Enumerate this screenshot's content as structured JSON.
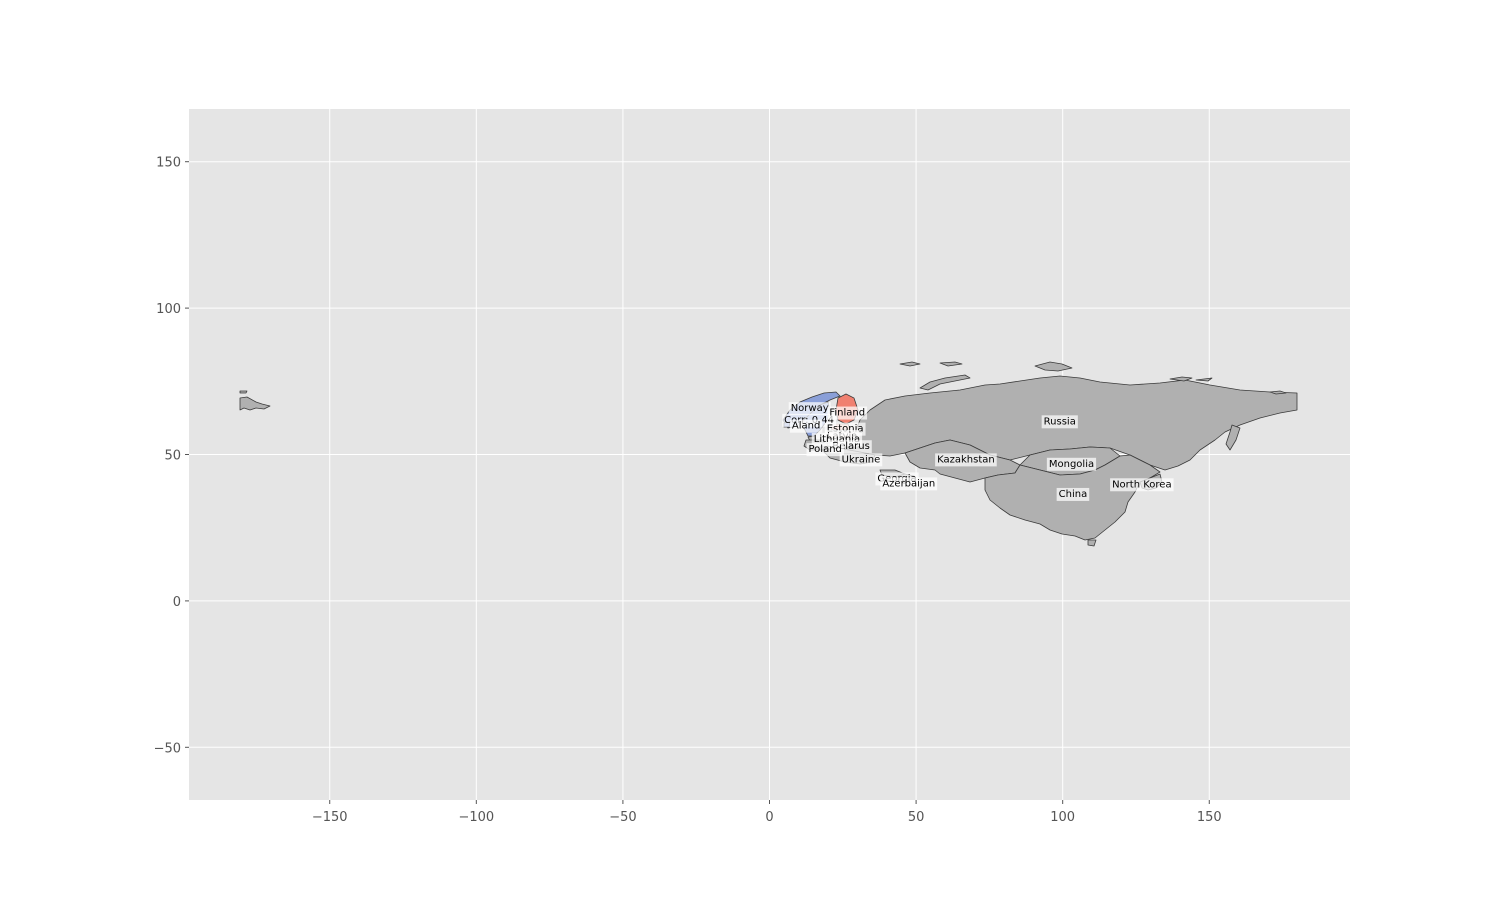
{
  "chart_data": {
    "type": "map",
    "xlim": [
      -198,
      198
    ],
    "ylim": [
      -68,
      168
    ],
    "x_ticks": [
      -150,
      -100,
      -50,
      0,
      50,
      100,
      150
    ],
    "y_ticks": [
      -50,
      0,
      50,
      100,
      150
    ],
    "x_tick_labels": [
      "−150",
      "−100",
      "−50",
      "0",
      "50",
      "100",
      "150"
    ],
    "y_tick_labels": [
      "−50",
      "0",
      "50",
      "100",
      "150"
    ],
    "grid": true,
    "colors": {
      "axes_background": "#e5e5e5",
      "land": "#b0b0b0",
      "high_value": "#f08070",
      "low_value": "#8a9fd8",
      "border": "#3a3a3a"
    },
    "country_labels": [
      {
        "name": "Norway",
        "lon": 13.7,
        "lat": 66.0
      },
      {
        "name": "Corr: 0.44",
        "lon": 13.5,
        "lat": 62.0
      },
      {
        "name": "Finland",
        "lon": 26.5,
        "lat": 64.5
      },
      {
        "name": "Aland",
        "lon": 12.5,
        "lat": 60.0
      },
      {
        "name": "Estonia",
        "lon": 25.8,
        "lat": 59.0
      },
      {
        "name": "Latvia",
        "lon": 24.8,
        "lat": 56.5
      },
      {
        "name": "Lithuania",
        "lon": 23.0,
        "lat": 55.5
      },
      {
        "name": "Belarus",
        "lon": 27.8,
        "lat": 53.0
      },
      {
        "name": "Poland",
        "lon": 19.0,
        "lat": 52.0
      },
      {
        "name": "Ukraine",
        "lon": 31.2,
        "lat": 48.5
      },
      {
        "name": "Georgia",
        "lon": 43.5,
        "lat": 42.0
      },
      {
        "name": "Azerbaijan",
        "lon": 47.5,
        "lat": 40.3
      },
      {
        "name": "Kazakhstan",
        "lon": 67.0,
        "lat": 48.5
      },
      {
        "name": "Russia",
        "lon": 99.0,
        "lat": 61.5
      },
      {
        "name": "Mongolia",
        "lon": 103.0,
        "lat": 47.0
      },
      {
        "name": "China",
        "lon": 103.5,
        "lat": 36.7
      },
      {
        "name": "North Korea",
        "lon": 127.0,
        "lat": 40.0
      }
    ]
  }
}
